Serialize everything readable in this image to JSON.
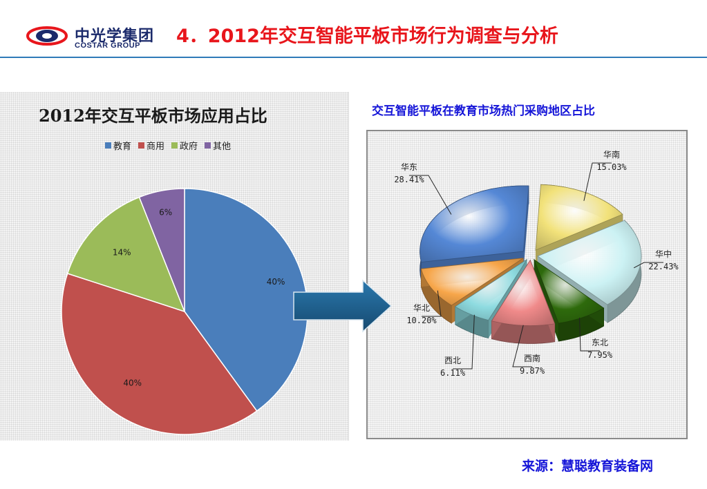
{
  "header": {
    "logo_cn": "中光学集团",
    "logo_en": "COSTAR GROUP",
    "title": "4．2012年交互智能平板市场行为调查与分析"
  },
  "source": "来源：慧聪教育装备网",
  "colors": {
    "title_red": "#e8161c",
    "accent_blue": "#1515d8",
    "rule": "#2e7ab8",
    "arrow": "#1f5f8c"
  },
  "chart_data": [
    {
      "type": "pie",
      "title": "2012年交互平板市场应用占比",
      "legend_position": "top",
      "categories": [
        "教育",
        "商用",
        "政府",
        "其他"
      ],
      "values": [
        40,
        40,
        14,
        6
      ],
      "value_labels": [
        "40%",
        "40%",
        "14%",
        "6%"
      ],
      "colors": [
        "#4a7ebb",
        "#c0504d",
        "#9bbb59",
        "#8064a2"
      ]
    },
    {
      "type": "pie",
      "title": "交互智能平板在教育市场热门采购地区占比",
      "categories": [
        "华南",
        "华中",
        "东北",
        "西南",
        "西北",
        "华北",
        "华东"
      ],
      "values": [
        15.03,
        22.43,
        7.95,
        9.87,
        6.11,
        10.2,
        28.41
      ],
      "value_labels": [
        "15.03%",
        "22.43%",
        "7.95%",
        "9.87%",
        "6.11%",
        "10.20%",
        "28.41%"
      ],
      "colors": [
        "#f2e27a",
        "#ccf2f4",
        "#2e6a0c",
        "#f08a8a",
        "#8edbe0",
        "#f7a64a",
        "#5588d6"
      ]
    }
  ]
}
